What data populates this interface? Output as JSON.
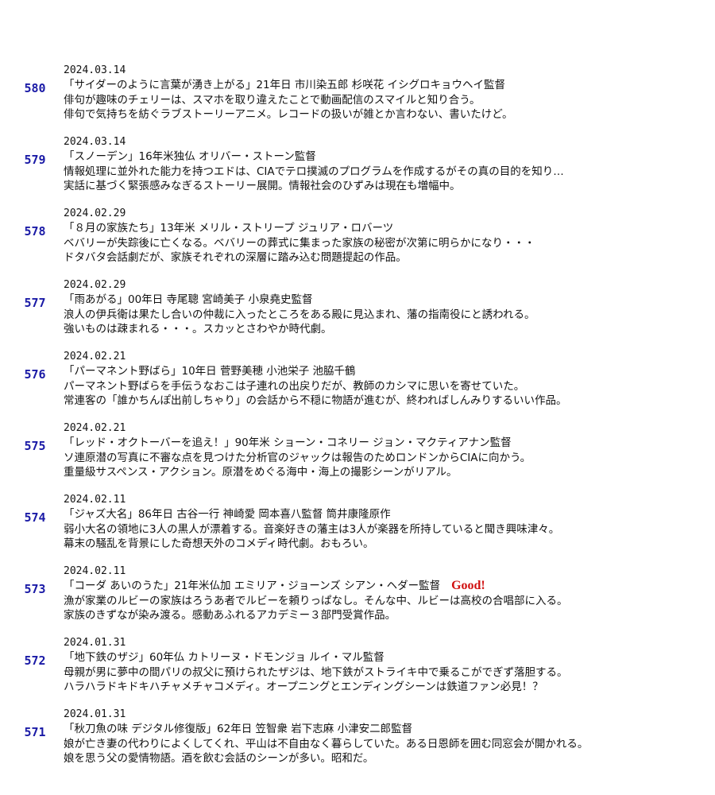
{
  "entries": [
    {
      "number": "580",
      "date": "2024.03.14",
      "title": "「サイダーのように言葉が湧き上がる」21年日 市川染五郎 杉咲花 イシグロキョウヘイ監督",
      "lines": [
        "俳句が趣味のチェリーは、スマホを取り違えたことで動画配信のスマイルと知り合う。",
        "俳句で気持ちを紡ぐラブストーリーアニメ。レコードの扱いが雑とか言わない、書いたけど。"
      ]
    },
    {
      "number": "579",
      "date": "2024.03.14",
      "title": "「スノーデン」16年米独仏 オリバー・ストーン監督",
      "lines": [
        "情報処理に並外れた能力を持つエドは、CIAでテロ撲滅のプログラムを作成するがその真の目的を知り…",
        "実話に基づく緊張感みなぎるストーリー展開。情報社会のひずみは現在も増幅中。"
      ]
    },
    {
      "number": "578",
      "date": "2024.02.29",
      "title": "「８月の家族たち」13年米 メリル・ストリープ ジュリア・ロバーツ",
      "lines": [
        "ベバリーが失踪後に亡くなる。ベバリーの葬式に集まった家族の秘密が次第に明らかになり・・・",
        "ドタバタ会話劇だが、家族それぞれの深層に踏み込む問題提起の作品。"
      ]
    },
    {
      "number": "577",
      "date": "2024.02.29",
      "title": "「雨あがる」00年日 寺尾聰 宮崎美子 小泉堯史監督",
      "lines": [
        "浪人の伊兵衛は果たし合いの仲裁に入ったところをある殿に見込まれ、藩の指南役にと誘われる。",
        "強いものは疎まれる・・・。スカッとさわやか時代劇。"
      ]
    },
    {
      "number": "576",
      "date": "2024.02.21",
      "title": "「パーマネント野ばら」10年日 菅野美穂 小池栄子 池脇千鶴",
      "lines": [
        "パーマネント野ばらを手伝うなおこは子連れの出戻りだが、教師のカシマに思いを寄せていた。",
        "常連客の「誰かちんぽ出前しちゃり」の会話から不穏に物語が進むが、終わればしんみりするいい作品。"
      ]
    },
    {
      "number": "575",
      "date": "2024.02.21",
      "title": "「レッド・オクトーバーを追え！」90年米 ショーン・コネリー ジョン・マクティアナン監督",
      "lines": [
        "ソ連原潜の写真に不審な点を見つけた分析官のジャックは報告のためロンドンからCIAに向かう。",
        "重量級サスペンス・アクション。原潜をめぐる海中・海上の撮影シーンがリアル。"
      ]
    },
    {
      "number": "574",
      "date": "2024.02.11",
      "title": "「ジャズ大名」86年日 古谷一行 神崎愛 岡本喜八監督 筒井康隆原作",
      "lines": [
        "弱小大名の領地に3人の黒人が漂着する。音楽好きの藩主は3人が楽器を所持していると聞き興味津々。",
        "幕末の騒乱を背景にした奇想天外のコメディ時代劇。おもろい。"
      ]
    },
    {
      "number": "573",
      "date": "2024.02.11",
      "title": "「コーダ あいのうた」21年米仏加 エミリア・ジョーンズ シアン・ヘダー監督",
      "badge": "Good!",
      "lines": [
        "漁が家業のルビーの家族はろうあ者でルビーを頼りっぱなし。そんな中、ルビーは高校の合唱部に入る。",
        "家族のきずなが染み渡る。感動あふれるアカデミー３部門受賞作品。"
      ]
    },
    {
      "number": "572",
      "date": "2024.01.31",
      "title": "「地下鉄のザジ」60年仏 カトリーヌ・ドモンジョ ルイ・マル監督",
      "lines": [
        "母親が男に夢中の間パリの叔父に預けられたザジは、地下鉄がストライキ中で乗るこがでぎず落胆する。",
        "ハラハラドキドキハチャメチャコメディ。オープニングとエンディングシーンは鉄道ファン必見！？"
      ]
    },
    {
      "number": "571",
      "date": "2024.01.31",
      "title": "「秋刀魚の味 デジタル修復版」62年日 笠智衆 岩下志麻 小津安二郎監督",
      "lines": [
        "娘が亡き妻の代わりによくしてくれ、平山は不自由なく暮らしていた。ある日恩師を囲む同窓会が開かれる。",
        "娘を思う父の愛情物語。酒を飲む会話のシーンが多い。昭和だ。"
      ]
    }
  ]
}
